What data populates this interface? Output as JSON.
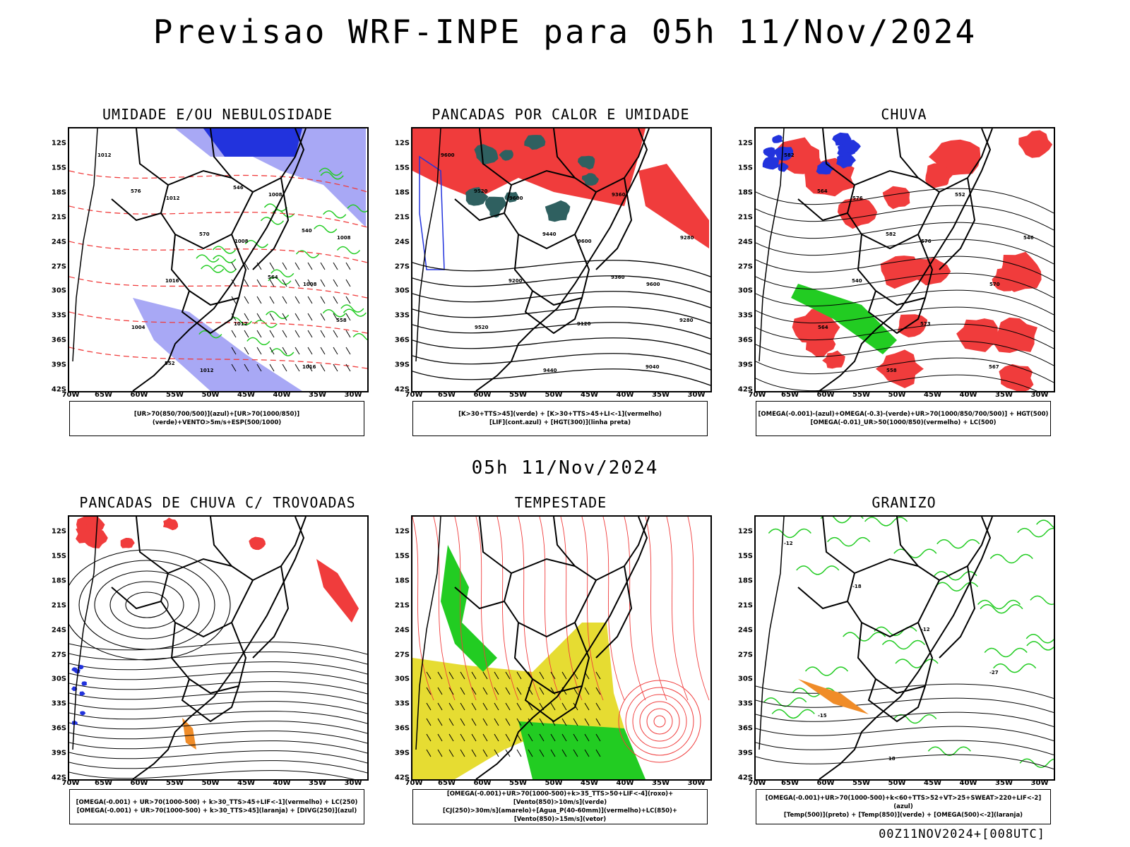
{
  "title": "Previsao WRF-INPE  para 05h 11/Nov/2024",
  "mid_time": "05h 11/Nov/2024",
  "footer": "00Z11NOV2024+[008UTC]",
  "axis": {
    "y_ticks": [
      "12S",
      "15S",
      "18S",
      "21S",
      "24S",
      "27S",
      "30S",
      "33S",
      "36S",
      "39S",
      "42S"
    ],
    "x_ticks": [
      "70W",
      "65W",
      "60W",
      "55W",
      "50W",
      "45W",
      "40W",
      "35W",
      "30W"
    ]
  },
  "colors": {
    "blue": "#2233dd",
    "light_blue": "#a8a8f5",
    "green": "#22cc22",
    "red": "#f03c3c",
    "dark_teal": "#2f6060",
    "yellow": "#e6dc32",
    "orange": "#f08c28"
  },
  "panels": [
    {
      "title": "UMIDADE E/OU NEBULOSIDADE",
      "legend": [
        "[UR>70(850/700/500)](azul)+[UR>70(1000/850)](verde)+VENTO>5m/s+ESP(500/1000)"
      ],
      "labels": [
        "1012",
        "1012",
        "1008",
        "1008",
        "1004",
        "1012",
        "1008",
        "1008",
        "1016",
        "1012",
        "1016",
        "576",
        "570",
        "564",
        "558",
        "552",
        "546",
        "540"
      ]
    },
    {
      "title": "PANCADAS POR CALOR E UMIDADE",
      "legend": [
        "[K>30+TTS>45](verde) + [K>30+TTS>45+LI<-1](vermelho)",
        "[LIF](cont.azul) + [HGT(300)](linha preta)"
      ],
      "labels": [
        "9600",
        "9600",
        "9600",
        "9600",
        "9520",
        "9440",
        "9360",
        "9280",
        "9200",
        "9120",
        "9040",
        "9520",
        "9440",
        "9360",
        "9280"
      ]
    },
    {
      "title": "CHUVA",
      "legend": [
        "[OMEGA(-0.001)-(azul)+OMEGA(-0.3)-(verde)+UR>70(1000/850/700/500)] + HGT(500)",
        "[OMEGA(-0.01)_UR>50(1000/850)(vermelho) + LC(500)"
      ],
      "labels": [
        "582",
        "576",
        "576",
        "570",
        "564",
        "558",
        "552",
        "546",
        "540",
        "573",
        "567",
        "564",
        "582"
      ]
    },
    {
      "title": "PANCADAS DE CHUVA C/ TROVOADAS",
      "legend": [
        "[OMEGA(-0.001) + UR>70(1000-500) + k>30_TTS>45+LIF<-1](vermelho) + LC(250)",
        "[OMEGA(-0.001) + UR>70(1000-500) + k>30_TTS>45](laranja) + [DIVG(250)](azul)"
      ],
      "labels": []
    },
    {
      "title": "TEMPESTADE",
      "legend": [
        "[OMEGA(-0.001)+UR>70(1000-500)+k>35_TTS>50+LIF<-4](roxo)+[Vento(850)>10m/s](verde)",
        "[CJ(250)>30m/s](amarelo)+[Agua_P(40-60mm)](vermelho)+LC(850)+[Vento(850)>15m/s](vetor)"
      ],
      "labels": []
    },
    {
      "title": "GRANIZO",
      "legend": [
        "[OMEGA(-0.001)+UR>70(1000-500)+k<60+TTS>52+VT>25+SWEAT>220+LIF<-2](azul)",
        "[Temp(500)](preto) + [Temp(850)](verde) + [OMEGA(500)<-2](laranja)"
      ],
      "labels": [
        "-12",
        "-18",
        "-12",
        "-27",
        "-15",
        "-18"
      ]
    }
  ]
}
